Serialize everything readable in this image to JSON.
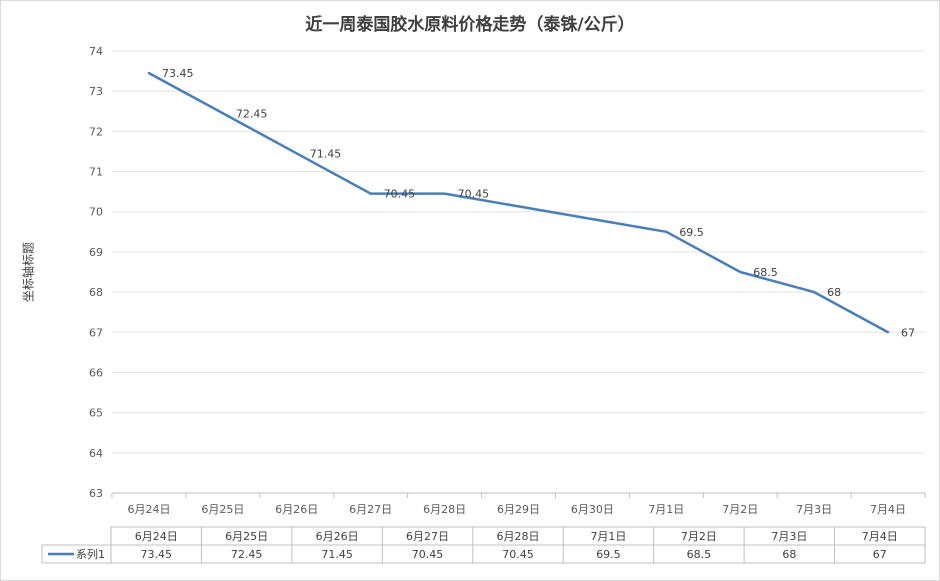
{
  "chart_data": {
    "type": "line",
    "title": "近一周泰国胶水原料价格走势（泰铢/公斤）",
    "xlabel": "",
    "ylabel": "坐标轴标题",
    "ylim": [
      63,
      74
    ],
    "ytick_step": 1,
    "grid": true,
    "x_tick_labels": [
      "6月24日",
      "6月25日",
      "6月26日",
      "6月27日",
      "6月28日",
      "6月29日",
      "6月30日",
      "7月1日",
      "7月2日",
      "7月3日",
      "7月4日"
    ],
    "series": [
      {
        "name": "系列1",
        "color": "#4a7ebb",
        "points": [
          {
            "x": "6月24日",
            "y": 73.45,
            "label": "73.45"
          },
          {
            "x": "6月25日",
            "y": 72.45,
            "label": "72.45"
          },
          {
            "x": "6月26日",
            "y": 71.45,
            "label": "71.45"
          },
          {
            "x": "6月27日",
            "y": 70.45,
            "label": "70.45"
          },
          {
            "x": "6月28日",
            "y": 70.45,
            "label": "70.45"
          },
          {
            "x": "7月1日",
            "y": 69.5,
            "label": "69.5"
          },
          {
            "x": "7月2日",
            "y": 68.5,
            "label": "68.5"
          },
          {
            "x": "7月3日",
            "y": 68,
            "label": "68"
          },
          {
            "x": "7月4日",
            "y": 67,
            "label": "67"
          }
        ]
      }
    ],
    "data_table": {
      "columns": [
        "6月24日",
        "6月25日",
        "6月26日",
        "6月27日",
        "6月28日",
        "7月1日",
        "7月2日",
        "7月3日",
        "7月4日"
      ],
      "rows": [
        {
          "series": "系列1",
          "values": [
            "73.45",
            "72.45",
            "71.45",
            "70.45",
            "70.45",
            "69.5",
            "68.5",
            "68",
            "67"
          ]
        }
      ]
    }
  }
}
